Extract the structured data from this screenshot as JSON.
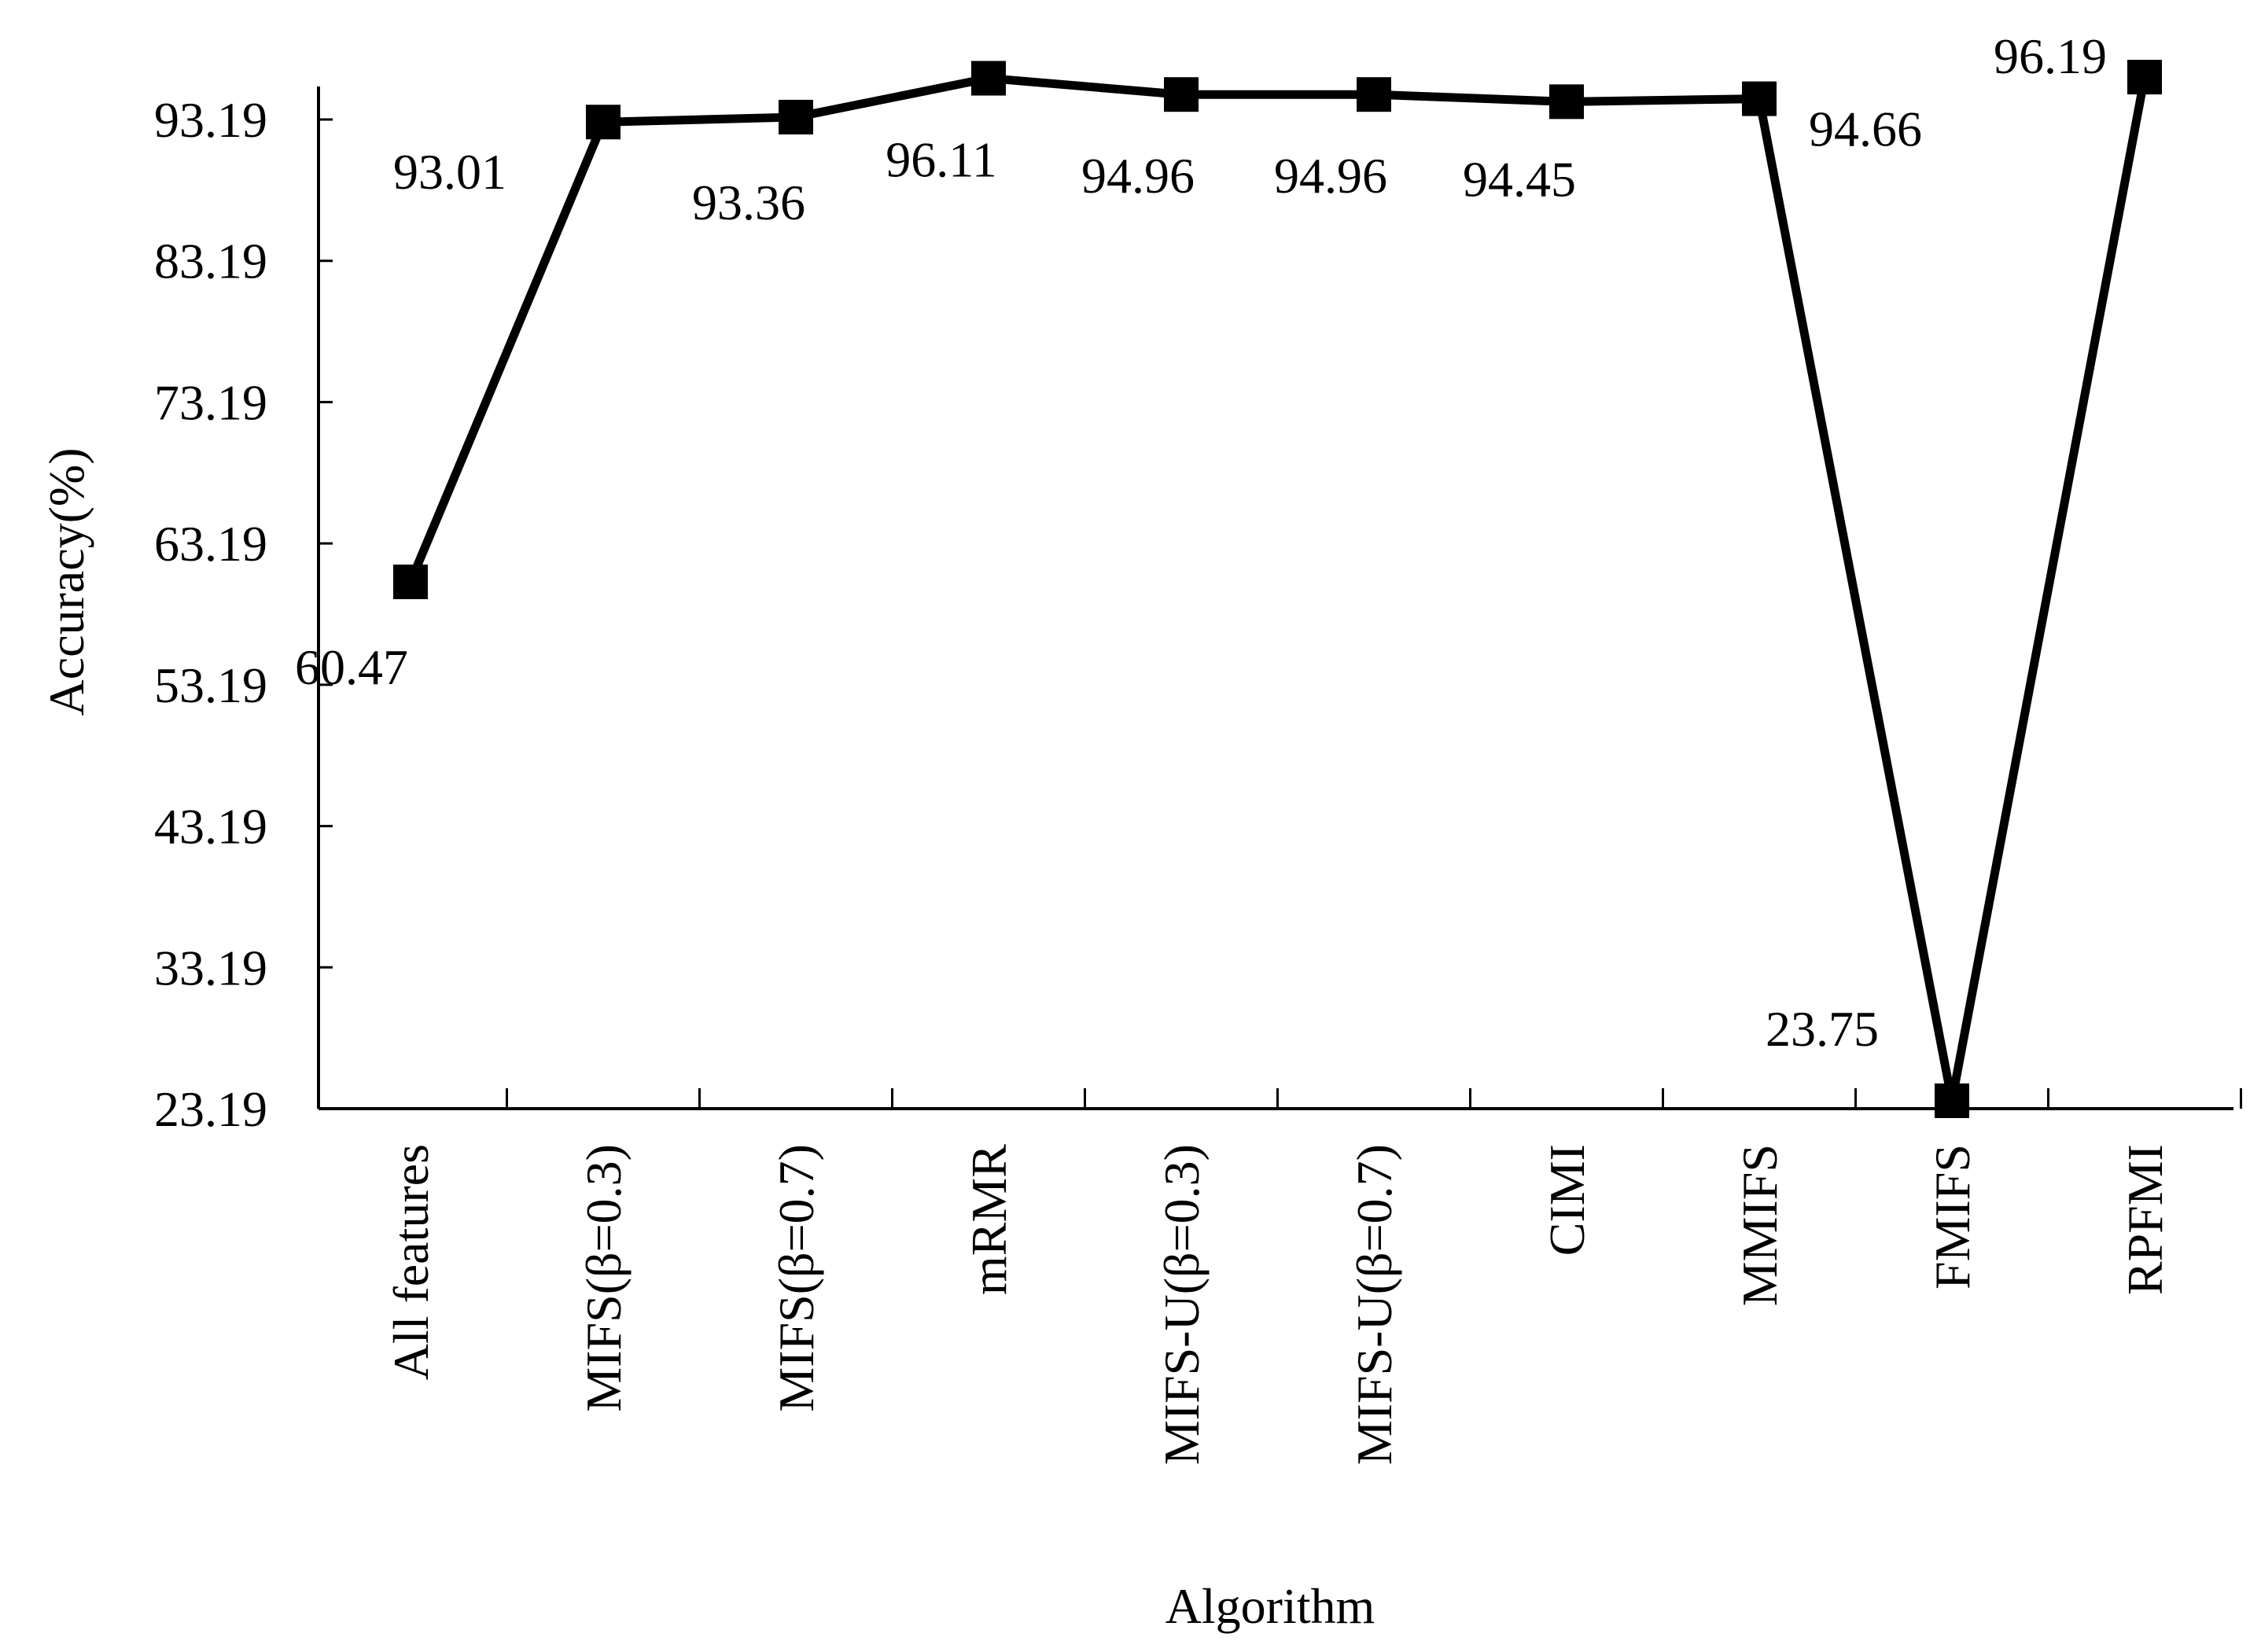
{
  "chart_data": {
    "type": "line",
    "xlabel": "Algorithm",
    "ylabel": "Accuracy(%)",
    "categories": [
      "All features",
      "MIFS(β=0.3)",
      "MIFS(β=0.7)",
      "mRMR",
      "MIFS-U(β=0.3)",
      "MIFS-U(β=0.7)",
      "CIMI",
      "MMIFS",
      "FMIFS",
      "RPFMI"
    ],
    "series": [
      {
        "values": [
          60.47,
          93.01,
          93.36,
          96.11,
          94.96,
          94.96,
          94.45,
          94.66,
          23.75,
          96.19
        ]
      }
    ],
    "data_labels": [
      "60.47",
      "93.01",
      "93.36",
      "96.11",
      "94.96",
      "94.96",
      "94.45",
      "94.66",
      "23.75",
      "96.19"
    ],
    "yticks": [
      "23.19",
      "33.19",
      "43.19",
      "53.19",
      "63.19",
      "73.19",
      "83.19",
      "93.19"
    ],
    "ylim": [
      23.19,
      98.5
    ],
    "line_color": "#000000",
    "marker": "square",
    "grid": false,
    "legend": "none"
  }
}
